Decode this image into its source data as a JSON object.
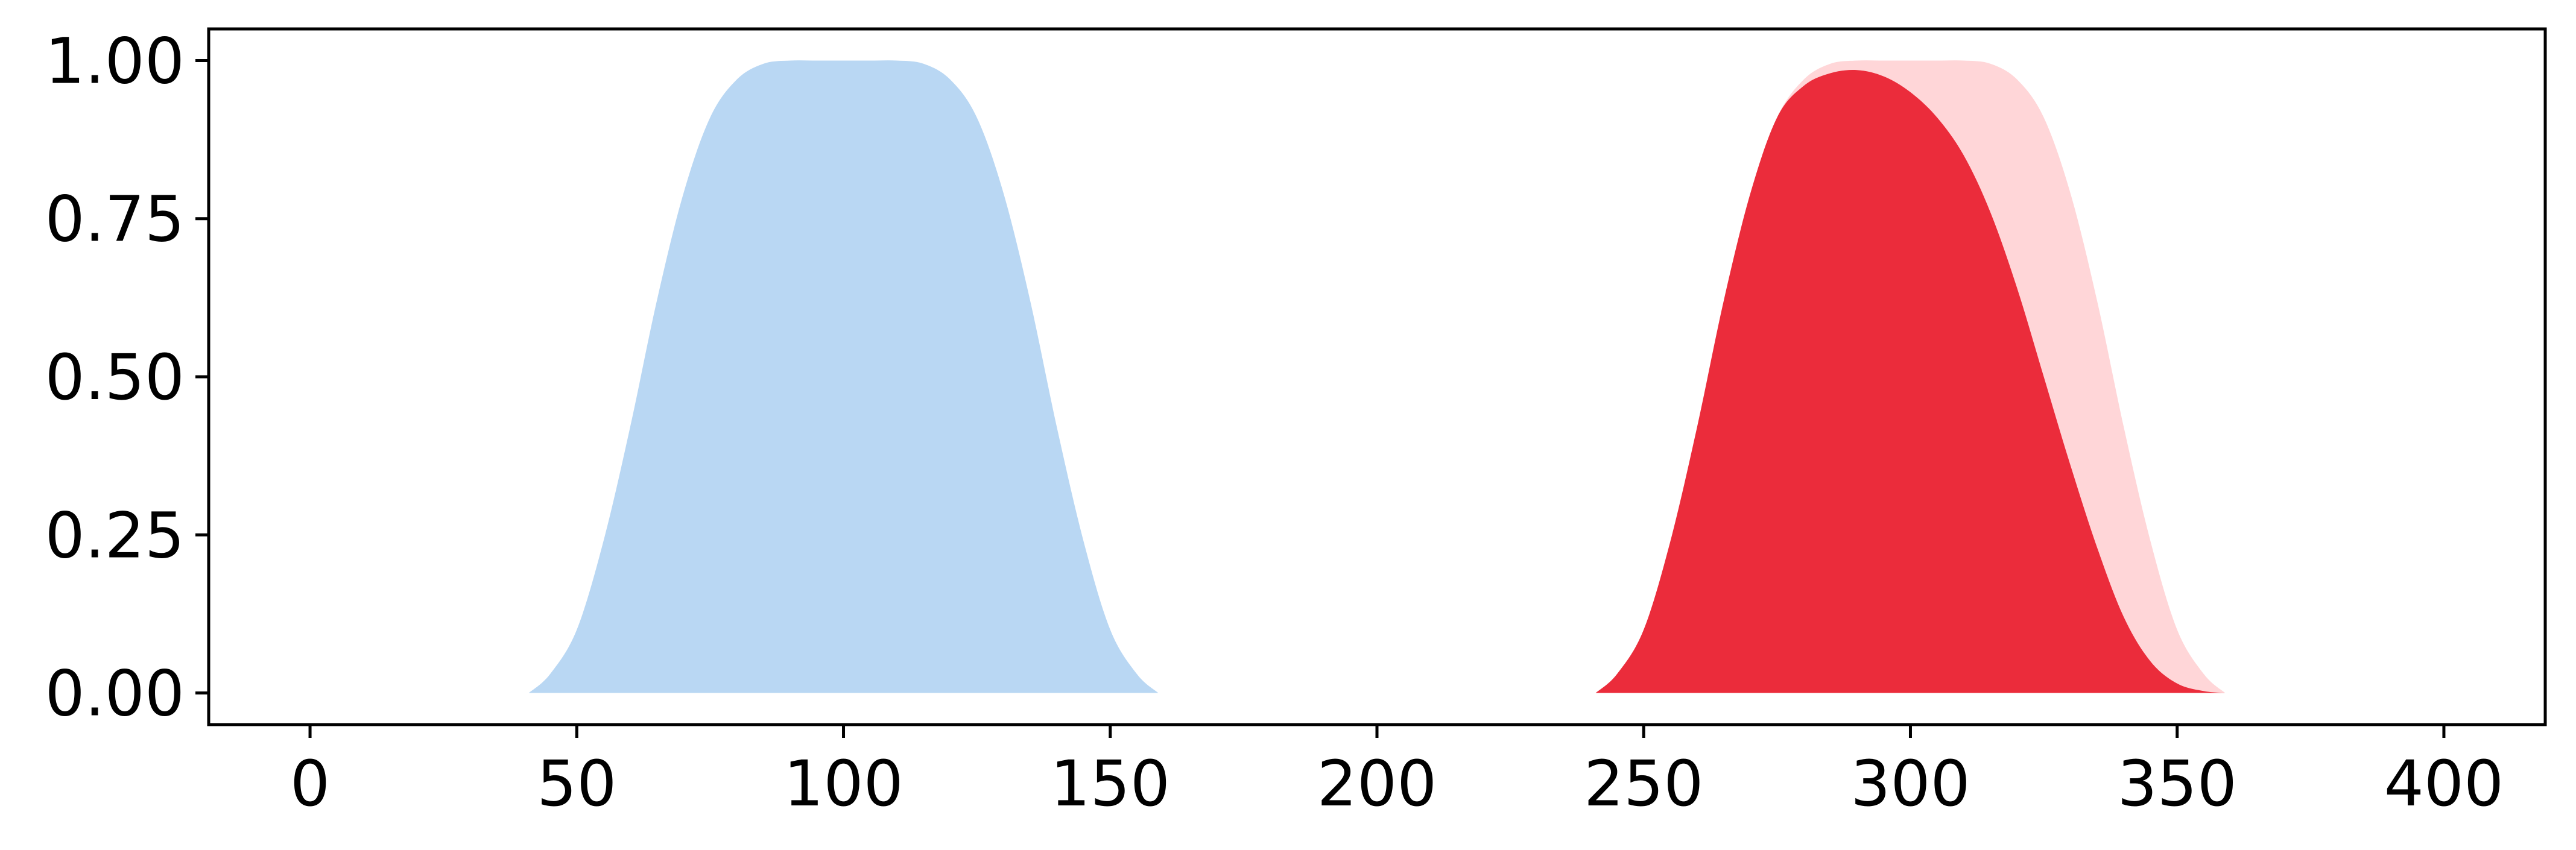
{
  "chart_data": {
    "type": "area",
    "title": "",
    "xlabel": "",
    "ylabel": "",
    "xlim": [
      -19,
      419
    ],
    "ylim": [
      -0.05,
      1.05
    ],
    "grid": false,
    "legend": "none",
    "x_ticks": [
      0,
      50,
      100,
      150,
      200,
      250,
      300,
      350,
      400
    ],
    "x_tick_labels": [
      "0",
      "50",
      "100",
      "150",
      "200",
      "250",
      "300",
      "350",
      "400"
    ],
    "y_ticks": [
      0,
      0.25,
      0.5,
      0.75,
      1.0
    ],
    "y_tick_labels": [
      "0.00",
      "0.25",
      "0.50",
      "0.75",
      "1.00"
    ],
    "series": [
      {
        "color": "#b9d7f3",
        "x": [
          41,
          45,
          50,
          55,
          60,
          65,
          70,
          75,
          80,
          85,
          90,
          95,
          100,
          105,
          110,
          115,
          120,
          125,
          130,
          135,
          140,
          145,
          150,
          155,
          159
        ],
        "y": [
          0.0,
          0.03,
          0.1,
          0.24,
          0.42,
          0.62,
          0.79,
          0.91,
          0.97,
          0.995,
          1.0,
          1.0,
          1.0,
          1.0,
          1.0,
          0.995,
          0.97,
          0.91,
          0.79,
          0.62,
          0.42,
          0.24,
          0.1,
          0.03,
          0.0
        ]
      },
      {
        "color": "#ffd6d8",
        "x": [
          241,
          245,
          250,
          255,
          260,
          265,
          270,
          275,
          280,
          285,
          290,
          295,
          300,
          305,
          310,
          315,
          320,
          325,
          330,
          335,
          340,
          345,
          350,
          355,
          359
        ],
        "y": [
          0.0,
          0.03,
          0.1,
          0.24,
          0.42,
          0.62,
          0.79,
          0.91,
          0.97,
          0.995,
          1.0,
          1.0,
          1.0,
          1.0,
          1.0,
          0.995,
          0.97,
          0.91,
          0.79,
          0.62,
          0.42,
          0.24,
          0.1,
          0.03,
          0.0
        ]
      },
      {
        "color": "#eb2c3b",
        "x": [
          241,
          245,
          250,
          255,
          260,
          265,
          270,
          275,
          280,
          285,
          290,
          295,
          300,
          305,
          310,
          315,
          320,
          325,
          330,
          335,
          340,
          345,
          350,
          355,
          359
        ],
        "y": [
          0.0,
          0.03,
          0.1,
          0.24,
          0.42,
          0.62,
          0.79,
          0.91,
          0.96,
          0.98,
          0.985,
          0.975,
          0.95,
          0.91,
          0.85,
          0.76,
          0.64,
          0.5,
          0.36,
          0.23,
          0.12,
          0.05,
          0.015,
          0.003,
          0.0
        ]
      }
    ]
  }
}
